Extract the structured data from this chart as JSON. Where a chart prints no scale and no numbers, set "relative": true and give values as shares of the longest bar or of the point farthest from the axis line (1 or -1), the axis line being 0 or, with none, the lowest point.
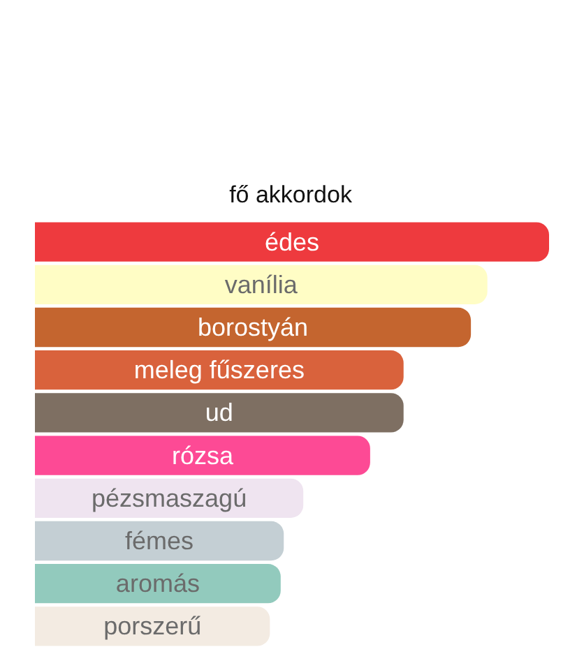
{
  "chart_data": {
    "type": "bar",
    "orientation": "horizontal",
    "relative": true,
    "title": "fő akkordok",
    "categories": [
      "édes",
      "vanília",
      "borostyán",
      "meleg fűszeres",
      "ud",
      "rózsa",
      "pézsmaszagú",
      "fémes",
      "aromás",
      "porszerű"
    ],
    "values": [
      1,
      0.88,
      0.848,
      0.717,
      0.717,
      0.652,
      0.522,
      0.484,
      0.478,
      0.457
    ],
    "colors": [
      "#ee3a3e",
      "#fffdc5",
      "#c4652f",
      "#d9623c",
      "#7e6f62",
      "#fd4a95",
      "#efe4f0",
      "#c4cfd4",
      "#92cabd",
      "#f3ebe2"
    ]
  }
}
